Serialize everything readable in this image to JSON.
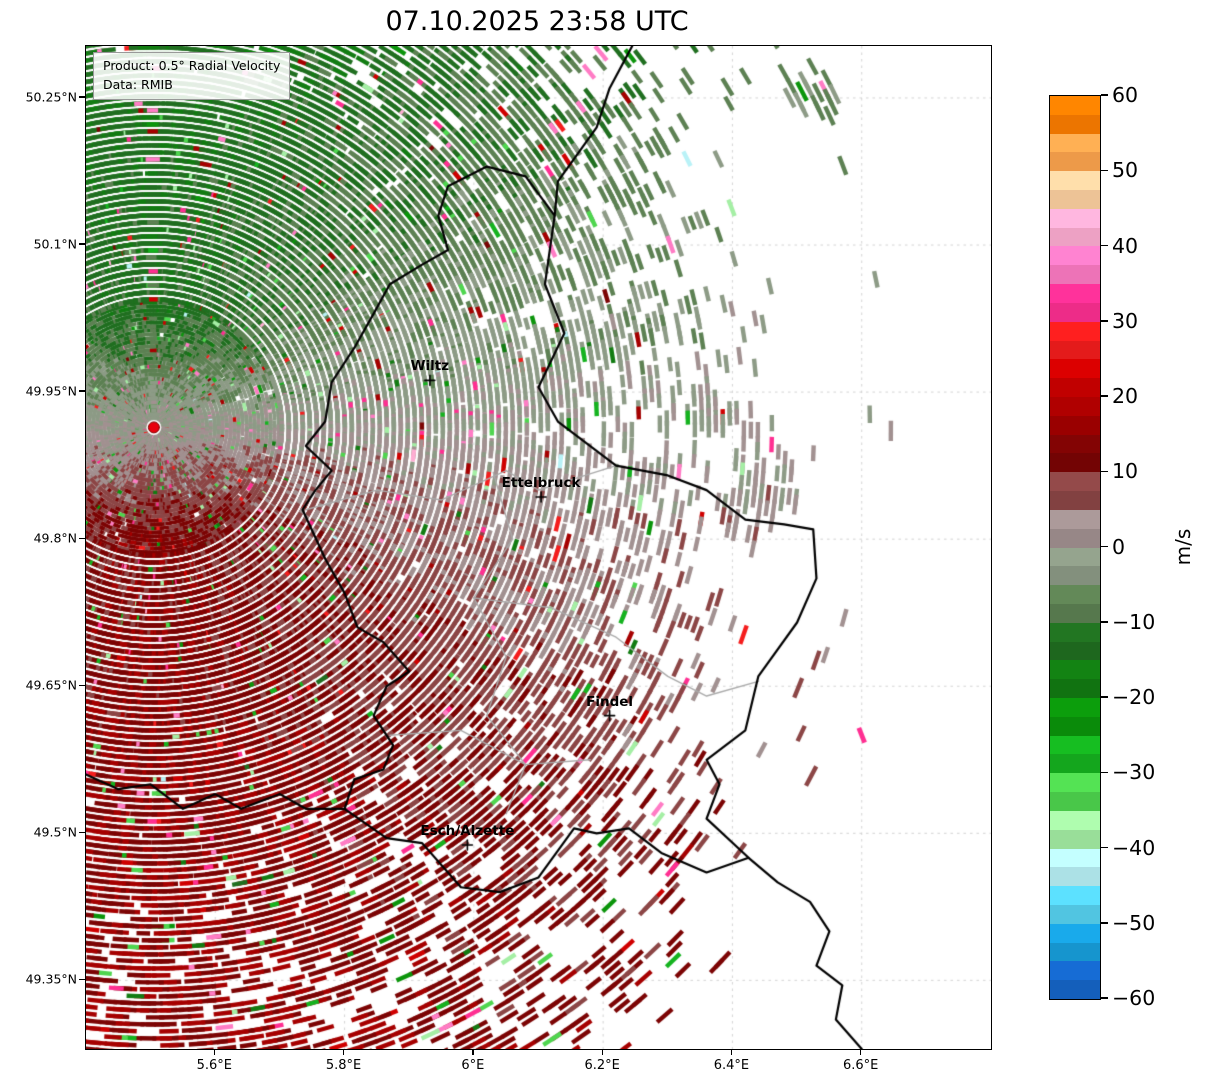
{
  "title": "07.10.2025 23:58 UTC",
  "product_box": {
    "line1": "Product: 0.5° Radial Velocity",
    "line2": "Data: RMIB"
  },
  "axes": {
    "x_range": [
      5.4,
      6.8
    ],
    "y_range": [
      49.28,
      50.303
    ],
    "x_ticks": [
      {
        "v": 5.6,
        "label": "5.6°E"
      },
      {
        "v": 5.8,
        "label": "5.8°E"
      },
      {
        "v": 6.0,
        "label": "6°E"
      },
      {
        "v": 6.2,
        "label": "6.2°E"
      },
      {
        "v": 6.4,
        "label": "6.4°E"
      },
      {
        "v": 6.6,
        "label": "6.6°E"
      }
    ],
    "y_ticks": [
      {
        "v": 50.25,
        "label": "50.25°N"
      },
      {
        "v": 50.1,
        "label": "50.1°N"
      },
      {
        "v": 49.95,
        "label": "49.95°N"
      },
      {
        "v": 49.8,
        "label": "49.8°N"
      },
      {
        "v": 49.65,
        "label": "49.65°N"
      },
      {
        "v": 49.5,
        "label": "49.5°N"
      },
      {
        "v": 49.35,
        "label": "49.35°N"
      }
    ],
    "grid": true
  },
  "colorbar": {
    "label": "m/s",
    "min": -60,
    "max": 60,
    "ticks": [
      {
        "v": 60,
        "label": "60"
      },
      {
        "v": 50,
        "label": "50"
      },
      {
        "v": 40,
        "label": "40"
      },
      {
        "v": 30,
        "label": "30"
      },
      {
        "v": 20,
        "label": "20"
      },
      {
        "v": 10,
        "label": "10"
      },
      {
        "v": 0,
        "label": "0"
      },
      {
        "v": -10,
        "label": "−10"
      },
      {
        "v": -20,
        "label": "−20"
      },
      {
        "v": -30,
        "label": "−30"
      },
      {
        "v": -40,
        "label": "−40"
      },
      {
        "v": -50,
        "label": "−50"
      },
      {
        "v": -60,
        "label": "−60"
      }
    ],
    "bands": [
      [
        60,
        55,
        "#fe7e00"
      ],
      [
        55,
        50,
        "#ffa64f"
      ],
      [
        50,
        45,
        "#ffd2a1"
      ],
      [
        45,
        40,
        "#ffadd3"
      ],
      [
        40,
        35,
        "#ff7cc5"
      ],
      [
        35,
        30,
        "#ff2f92"
      ],
      [
        30,
        25,
        "#f51d1d"
      ],
      [
        25,
        20,
        "#d00000"
      ],
      [
        20,
        15,
        "#a60000"
      ],
      [
        15,
        10,
        "#7c0404"
      ],
      [
        10,
        5,
        "#8c4646"
      ],
      [
        5,
        0,
        "#a29191"
      ],
      [
        0,
        -5,
        "#8d9b86"
      ],
      [
        -5,
        -10,
        "#5d8153"
      ],
      [
        -10,
        -15,
        "#206f20"
      ],
      [
        -15,
        -20,
        "#127c12"
      ],
      [
        -20,
        -25,
        "#0b950b"
      ],
      [
        -25,
        -30,
        "#15b31f"
      ],
      [
        -30,
        -35,
        "#4fd64f"
      ],
      [
        -35,
        -40,
        "#a5efa5"
      ],
      [
        -40,
        -45,
        "#b9f2f7"
      ],
      [
        -45,
        -50,
        "#57d4f2"
      ],
      [
        -50,
        -55,
        "#18a0de"
      ],
      [
        -55,
        -60,
        "#1566c9"
      ]
    ]
  },
  "chart_data": {
    "type": "heatmap",
    "subtype": "weather_radar_radial_velocity_ppi",
    "title": "07.10.2025 23:58 UTC",
    "units": "m/s",
    "value_range": [
      -60,
      60
    ],
    "extent": {
      "lon": [
        5.4,
        6.8
      ],
      "lat": [
        49.28,
        50.303
      ]
    },
    "radar_site": {
      "lon": 5.505,
      "lat": 49.914,
      "marker": "red-dot"
    },
    "cities": [
      {
        "name": "Wiltz",
        "lon": 5.932,
        "lat": 49.962,
        "marker": "+"
      },
      {
        "name": "Ettelbruck",
        "lon": 6.104,
        "lat": 49.843,
        "marker": "+"
      },
      {
        "name": "Findel",
        "lon": 6.21,
        "lat": 49.62,
        "marker": "+"
      },
      {
        "name": "Esch/Alzette",
        "lon": 5.99,
        "lat": 49.488,
        "marker": "+"
      }
    ],
    "field_summary": {
      "pattern": "Velocity couplet centred on the radar: inbound (negative, green) radial velocities of about -5 to -20 m/s over the northern semicircle, outbound (positive, dark red) velocities of about +5 to +20 m/s over the southern semicircle, near-zero (grey) band oriented roughly west-east through the radar, indicating northerly flow of roughly 10-15 m/s.",
      "coverage": "Dense echo coverage west of about 6.1°E out to the image edges; only sparse isolated echoes and small clusters further east over eastern Luxembourg and Germany.",
      "sectors": [
        {
          "azimuth": "N",
          "radial_velocity_ms": [
            -20,
            -5
          ]
        },
        {
          "azimuth": "E",
          "radial_velocity_ms": [
            -5,
            5
          ]
        },
        {
          "azimuth": "S",
          "radial_velocity_ms": [
            5,
            20
          ]
        },
        {
          "azimuth": "W",
          "radial_velocity_ms": [
            -5,
            5
          ]
        }
      ],
      "isolated_echoes": [
        {
          "lon": 6.6,
          "lat": 49.6,
          "value_ms": 32
        }
      ]
    }
  },
  "map": {
    "borders": {
      "national_color": "#000000",
      "internal_color": "#aaaaaa",
      "national": [
        [
          [
            6.245,
            50.303
          ],
          [
            6.21,
            50.26
          ],
          [
            6.19,
            50.22
          ],
          [
            6.13,
            50.165
          ],
          [
            6.125,
            50.13
          ]
        ],
        [
          [
            6.02,
            50.18
          ],
          [
            6.08,
            50.17
          ],
          [
            6.125,
            50.13
          ],
          [
            6.11,
            50.06
          ],
          [
            6.14,
            50.01
          ],
          [
            6.1,
            49.955
          ],
          [
            6.13,
            49.92
          ],
          [
            6.22,
            49.875
          ],
          [
            6.3,
            49.865
          ],
          [
            6.36,
            49.85
          ],
          [
            6.42,
            49.82
          ],
          [
            6.48,
            49.815
          ],
          [
            6.525,
            49.81
          ],
          [
            6.53,
            49.76
          ],
          [
            6.5,
            49.715
          ],
          [
            6.44,
            49.66
          ],
          [
            6.42,
            49.605
          ],
          [
            6.36,
            49.575
          ],
          [
            6.38,
            49.55
          ],
          [
            6.36,
            49.515
          ],
          [
            6.425,
            49.475
          ],
          [
            6.36,
            49.46
          ],
          [
            6.29,
            49.48
          ],
          [
            6.24,
            49.505
          ],
          [
            6.19,
            49.5
          ],
          [
            6.155,
            49.505
          ],
          [
            6.1,
            49.455
          ],
          [
            6.04,
            49.44
          ],
          [
            5.98,
            49.445
          ],
          [
            5.92,
            49.49
          ],
          [
            5.865,
            49.495
          ],
          [
            5.8,
            49.525
          ],
          [
            5.815,
            49.555
          ],
          [
            5.86,
            49.565
          ],
          [
            5.875,
            49.59
          ],
          [
            5.845,
            49.62
          ],
          [
            5.865,
            49.65
          ],
          [
            5.9,
            49.665
          ],
          [
            5.86,
            49.695
          ],
          [
            5.82,
            49.71
          ],
          [
            5.8,
            49.745
          ],
          [
            5.77,
            49.78
          ],
          [
            5.735,
            49.83
          ],
          [
            5.755,
            49.85
          ],
          [
            5.78,
            49.87
          ],
          [
            5.74,
            49.895
          ],
          [
            5.77,
            49.92
          ],
          [
            5.78,
            49.96
          ],
          [
            5.815,
            49.995
          ],
          [
            5.845,
            50.03
          ],
          [
            5.87,
            50.06
          ],
          [
            5.92,
            50.08
          ],
          [
            5.96,
            50.095
          ],
          [
            5.945,
            50.13
          ],
          [
            5.96,
            50.16
          ],
          [
            6.02,
            50.18
          ]
        ],
        [
          [
            5.4,
            49.56
          ],
          [
            5.45,
            49.545
          ],
          [
            5.5,
            49.55
          ],
          [
            5.55,
            49.525
          ],
          [
            5.6,
            49.54
          ],
          [
            5.64,
            49.525
          ],
          [
            5.7,
            49.54
          ],
          [
            5.74,
            49.525
          ],
          [
            5.8,
            49.525
          ]
        ],
        [
          [
            6.425,
            49.475
          ],
          [
            6.47,
            49.45
          ],
          [
            6.52,
            49.43
          ],
          [
            6.55,
            49.4
          ],
          [
            6.53,
            49.365
          ],
          [
            6.57,
            49.345
          ],
          [
            6.56,
            49.31
          ],
          [
            6.6,
            49.28
          ]
        ]
      ],
      "internal": [
        [
          [
            5.74,
            49.83
          ],
          [
            5.85,
            49.85
          ],
          [
            5.95,
            49.84
          ],
          [
            6.05,
            49.87
          ],
          [
            6.1,
            49.85
          ],
          [
            6.22,
            49.875
          ]
        ],
        [
          [
            6.03,
            49.868
          ],
          [
            6.06,
            49.8
          ],
          [
            6.0,
            49.74
          ],
          [
            6.05,
            49.68
          ],
          [
            6.02,
            49.62
          ],
          [
            6.08,
            49.57
          ],
          [
            6.05,
            49.52
          ]
        ],
        [
          [
            6.0,
            49.74
          ],
          [
            6.12,
            49.73
          ],
          [
            6.22,
            49.7
          ],
          [
            6.3,
            49.66
          ],
          [
            6.36,
            49.64
          ],
          [
            6.44,
            49.655
          ]
        ],
        [
          [
            5.87,
            49.6
          ],
          [
            5.98,
            49.605
          ],
          [
            6.08,
            49.57
          ],
          [
            6.18,
            49.575
          ]
        ]
      ]
    }
  }
}
